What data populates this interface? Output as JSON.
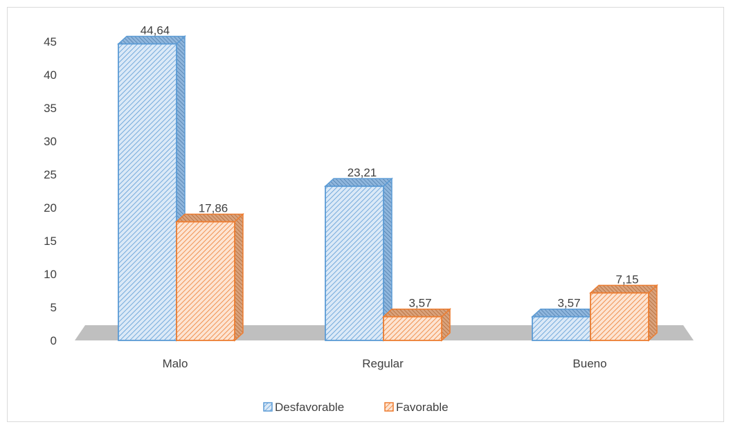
{
  "chart_data": {
    "type": "bar",
    "categories": [
      "Malo",
      "Regular",
      "Bueno"
    ],
    "series": [
      {
        "name": "Desfavorable",
        "values": [
          44.64,
          23.21,
          3.57
        ],
        "color": "#5b9bd5"
      },
      {
        "name": "Favorable",
        "values": [
          17.86,
          3.57,
          7.15
        ],
        "color": "#ed7d31"
      }
    ],
    "value_labels": [
      [
        "44,64",
        "23,21",
        "3,57"
      ],
      [
        "17,86",
        "3,57",
        "7,15"
      ]
    ],
    "y_ticks": [
      "0",
      "5",
      "10",
      "15",
      "20",
      "25",
      "30",
      "35",
      "40",
      "45"
    ],
    "ylim": [
      0,
      45
    ],
    "grid": false,
    "legend_position": "bottom",
    "style": "3d-clustered-column-pattern-fill"
  }
}
